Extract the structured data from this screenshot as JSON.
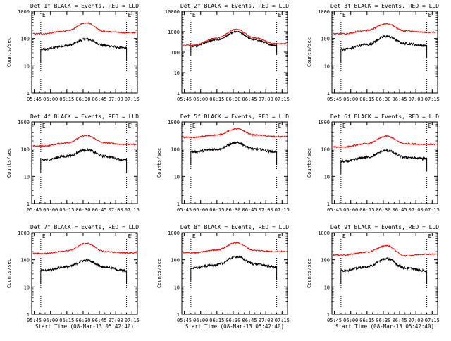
{
  "figure": {
    "xlabel": "Start Time (08-Mar-13 05:42:40)",
    "ylabel": "Counts/sec",
    "xticks": [
      "05:45",
      "06:00",
      "06:15",
      "06:30",
      "06:45",
      "07:00",
      "07:15"
    ],
    "yticks": [
      "1",
      "10",
      "100",
      "1000"
    ],
    "colors": {
      "events": "#000000",
      "lld": "#ff0000",
      "axes": "#000000"
    }
  },
  "chart_data": [
    {
      "type": "line",
      "title": "Det 1f BLACK = Events, RED = LLD",
      "xlabel": "",
      "ylabel": "Counts/sec",
      "marker_label": "E",
      "xlim": [
        "05:42:40",
        "07:20"
      ],
      "ylim": [
        1,
        1000
      ],
      "yscale": "log",
      "x": [
        "05:53",
        "06:15",
        "06:33",
        "06:50",
        "07:08"
      ],
      "series": [
        {
          "name": "Events",
          "values": [
            40,
            55,
            95,
            55,
            45
          ]
        },
        {
          "name": "LLD",
          "values": [
            150,
            190,
            380,
            180,
            165
          ]
        }
      ]
    },
    {
      "type": "line",
      "title": "Det 2f BLACK = Events, RED = LLD",
      "xlabel": "",
      "ylabel": "",
      "marker_label": "E",
      "xlim": [
        "05:42:40",
        "07:20"
      ],
      "ylim": [
        1,
        10000
      ],
      "yscale": "log",
      "x": [
        "05:53",
        "06:15",
        "06:33",
        "06:50",
        "07:08"
      ],
      "series": [
        {
          "name": "Events",
          "values": [
            200,
            400,
            1000,
            400,
            220
          ]
        },
        {
          "name": "LLD",
          "values": [
            220,
            500,
            1300,
            500,
            260
          ]
        }
      ]
    },
    {
      "type": "line",
      "title": "Det 3f BLACK = Events, RED = LLD",
      "xlabel": "",
      "ylabel": "Counts/sec",
      "marker_label": "E",
      "xlim": [
        "05:42:40",
        "07:20"
      ],
      "ylim": [
        1,
        1000
      ],
      "yscale": "log",
      "x": [
        "05:53",
        "06:15",
        "06:33",
        "06:50",
        "07:08"
      ],
      "series": [
        {
          "name": "Events",
          "values": [
            40,
            60,
            120,
            65,
            55
          ]
        },
        {
          "name": "LLD",
          "values": [
            150,
            200,
            350,
            190,
            170
          ]
        }
      ]
    },
    {
      "type": "line",
      "title": "Det 4f BLACK = Events, RED = LLD",
      "xlabel": "",
      "ylabel": "Counts/sec",
      "marker_label": "E",
      "xlim": [
        "05:42:40",
        "07:20"
      ],
      "ylim": [
        1,
        1000
      ],
      "yscale": "log",
      "x": [
        "05:53",
        "06:15",
        "06:33",
        "06:50",
        "07:08"
      ],
      "series": [
        {
          "name": "Events",
          "values": [
            40,
            55,
            95,
            55,
            40
          ]
        },
        {
          "name": "LLD",
          "values": [
            130,
            170,
            320,
            170,
            150
          ]
        }
      ]
    },
    {
      "type": "line",
      "title": "Det 5f BLACK = Events, RED = LLD",
      "xlabel": "",
      "ylabel": "Counts/sec",
      "marker_label": "E",
      "xlim": [
        "05:42:40",
        "07:20"
      ],
      "ylim": [
        1,
        1000
      ],
      "yscale": "log",
      "x": [
        "05:53",
        "06:15",
        "06:33",
        "06:50",
        "07:08"
      ],
      "series": [
        {
          "name": "Events",
          "values": [
            80,
            100,
            170,
            100,
            80
          ]
        },
        {
          "name": "LLD",
          "values": [
            270,
            330,
            560,
            330,
            290
          ]
        }
      ]
    },
    {
      "type": "line",
      "title": "Det 6f BLACK = Events, RED = LLD",
      "xlabel": "",
      "ylabel": "Counts/sec",
      "marker_label": "E",
      "xlim": [
        "05:42:40",
        "07:20"
      ],
      "ylim": [
        1,
        1000
      ],
      "yscale": "log",
      "x": [
        "05:53",
        "06:15",
        "06:33",
        "06:50",
        "07:08"
      ],
      "series": [
        {
          "name": "Events",
          "values": [
            35,
            50,
            90,
            50,
            45
          ]
        },
        {
          "name": "LLD",
          "values": [
            120,
            160,
            300,
            160,
            150
          ]
        }
      ]
    },
    {
      "type": "line",
      "title": "Det 7f BLACK = Events, RED = LLD",
      "xlabel": "Start Time (08-Mar-13 05:42:40)",
      "ylabel": "Counts/sec",
      "marker_label": "E",
      "xlim": [
        "05:42:40",
        "07:20"
      ],
      "ylim": [
        1,
        1000
      ],
      "yscale": "log",
      "x": [
        "05:53",
        "06:15",
        "06:33",
        "06:50",
        "07:08"
      ],
      "series": [
        {
          "name": "Events",
          "values": [
            40,
            55,
            95,
            55,
            40
          ]
        },
        {
          "name": "LLD",
          "values": [
            170,
            210,
            400,
            200,
            180
          ]
        }
      ]
    },
    {
      "type": "line",
      "title": "Det 8f BLACK = Events, RED = LLD",
      "xlabel": "Start Time (08-Mar-13 05:42:40)",
      "ylabel": "Counts/sec",
      "marker_label": "E",
      "xlim": [
        "05:42:40",
        "07:20"
      ],
      "ylim": [
        1,
        1000
      ],
      "yscale": "log",
      "x": [
        "05:53",
        "06:15",
        "06:33",
        "06:50",
        "07:08"
      ],
      "series": [
        {
          "name": "Events",
          "values": [
            50,
            65,
            130,
            70,
            55
          ]
        },
        {
          "name": "LLD",
          "values": [
            180,
            230,
            420,
            220,
            200
          ]
        }
      ]
    },
    {
      "type": "line",
      "title": "Det 9f BLACK = Events, RED = LLD",
      "xlabel": "Start Time (08-Mar-13 05:42:40)",
      "ylabel": "Counts/sec",
      "marker_label": "E",
      "xlim": [
        "05:42:40",
        "07:20"
      ],
      "ylim": [
        1,
        1000
      ],
      "yscale": "log",
      "x": [
        "05:53",
        "06:15",
        "06:33",
        "06:50",
        "07:08"
      ],
      "series": [
        {
          "name": "Events",
          "values": [
            40,
            55,
            110,
            50,
            40
          ]
        },
        {
          "name": "LLD",
          "values": [
            150,
            190,
            330,
            140,
            160
          ]
        }
      ]
    }
  ]
}
